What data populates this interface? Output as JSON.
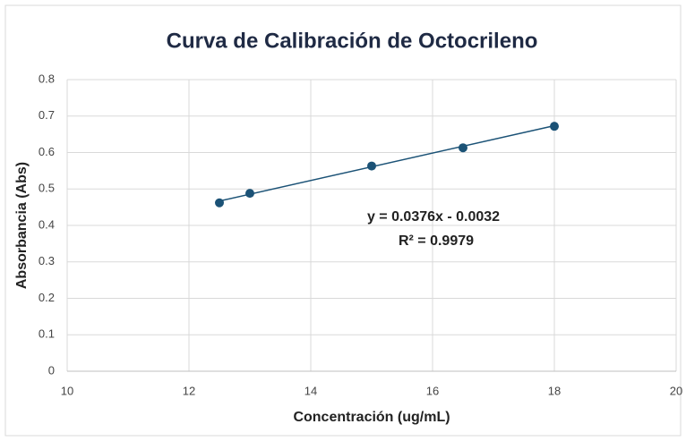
{
  "chart_data": {
    "type": "scatter",
    "title": "Curva de Calibración  de Octocrileno",
    "x_label": "Concentración (ug/mL)",
    "y_label": "Absorbancia (Abs)",
    "series": [
      {
        "name": "Absorbancia",
        "color": "#1b5276",
        "x": [
          12.5,
          13,
          15,
          16.5,
          18
        ],
        "values": [
          0.462,
          0.488,
          0.563,
          0.613,
          0.672
        ]
      }
    ],
    "trendline": {
      "slope": 0.0376,
      "intercept": -0.0032,
      "label": "y = 0.0376x - 0.0032",
      "r2_label": "R² = 0.9979"
    },
    "xlim": [
      10,
      20
    ],
    "xticks": [
      10,
      12,
      14,
      16,
      18,
      20
    ],
    "ylim": [
      0,
      0.8
    ],
    "yticks": [
      0,
      0.1,
      0.2,
      0.3,
      0.4,
      0.5,
      0.6,
      0.7,
      0.8
    ],
    "grid": true
  }
}
